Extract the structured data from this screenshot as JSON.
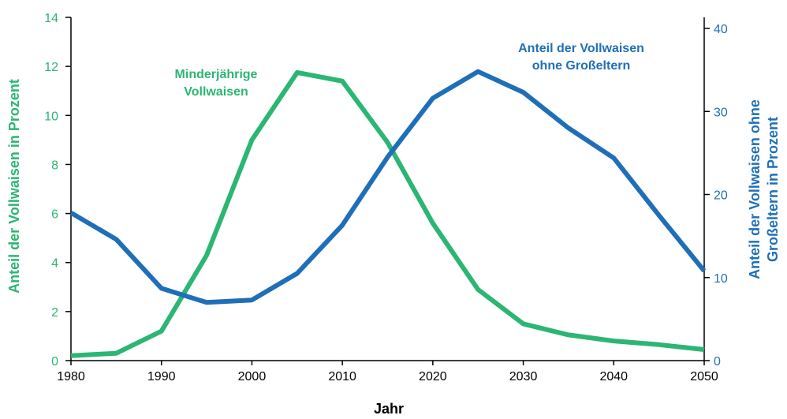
{
  "chart_data": {
    "type": "line",
    "title": "",
    "xlabel": "Jahr",
    "ylabel_left": "Anteil der Vollwaisen in Prozent",
    "ylabel_right": [
      "Anteil der Vollwaisen ohne",
      "Großeltern in Prozent"
    ],
    "xlim": [
      1980,
      2050
    ],
    "ylim_left": [
      0,
      14
    ],
    "ylim_right": [
      0,
      40
    ],
    "x_ticks": [
      "1980",
      "1990",
      "2000",
      "2010",
      "2020",
      "2030",
      "2040",
      "2050"
    ],
    "y_left_ticks": [
      "0",
      "2",
      "4",
      "6",
      "8",
      "10",
      "12",
      "14"
    ],
    "y_right_ticks": [
      "0",
      "10",
      "20",
      "30",
      "40"
    ],
    "grid": false,
    "colors": {
      "green": "#2bb673",
      "blue": "#1f6fb8",
      "axis": "#000000"
    },
    "series": [
      {
        "name": "Minderjährige Vollwaisen",
        "axis": "left",
        "color": "#2bb673",
        "annotation": [
          "Minderjährige",
          "Vollwaisen"
        ],
        "x": [
          1980,
          1985,
          1990,
          1995,
          2000,
          2005,
          2010,
          2015,
          2020,
          2025,
          2030,
          2035,
          2040,
          2045,
          2050
        ],
        "y": [
          0.2,
          0.3,
          1.2,
          4.3,
          9.0,
          11.75,
          11.4,
          8.9,
          5.6,
          2.9,
          1.5,
          1.05,
          0.8,
          0.65,
          0.45
        ]
      },
      {
        "name": "Anteil der Vollwaisen ohne Großeltern",
        "axis": "right",
        "color": "#1f6fb8",
        "annotation": [
          "Anteil der Vollwaisen",
          "ohne Großeltern"
        ],
        "x": [
          1980,
          1985,
          1990,
          1995,
          2000,
          2005,
          2010,
          2015,
          2020,
          2025,
          2030,
          2035,
          2040,
          2045,
          2050
        ],
        "y": [
          17.8,
          14.6,
          8.7,
          7.0,
          7.3,
          10.5,
          16.3,
          24.5,
          31.6,
          34.8,
          32.3,
          28.0,
          24.4,
          17.5,
          10.8
        ]
      }
    ]
  }
}
